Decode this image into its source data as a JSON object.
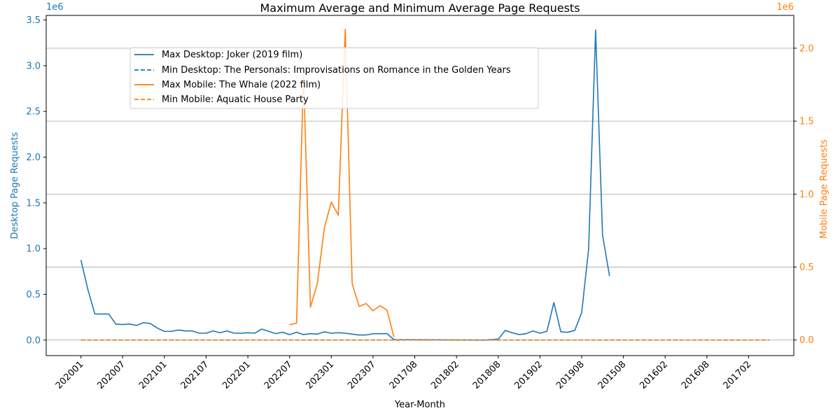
{
  "chart_data": {
    "type": "line",
    "title": "Maximum Average and Minimum Average Page Requests",
    "xlabel": "Year-Month",
    "ylabel_left": "Desktop Page Requests",
    "ylabel_right": "Mobile Page Requests",
    "left_offset_label": "1e6",
    "right_offset_label": "1e6",
    "left_ylim": [
      -0.17,
      3.55
    ],
    "right_ylim": [
      -0.107,
      2.225
    ],
    "left_yticks": [
      "0.0",
      "0.5",
      "1.0",
      "1.5",
      "2.0",
      "2.5",
      "3.0",
      "3.5"
    ],
    "left_ytick_values": [
      0,
      0.5,
      1.0,
      1.5,
      2.0,
      2.5,
      3.0,
      3.5
    ],
    "right_yticks": [
      "0.0",
      "0.5",
      "1.0",
      "1.5",
      "2.0"
    ],
    "right_ytick_values": [
      0,
      0.5,
      1.0,
      1.5,
      2.0
    ],
    "x_count": 100,
    "xlim": [
      -5,
      102.5
    ],
    "x_tick_labels": [
      "202001",
      "202007",
      "202101",
      "202107",
      "202201",
      "202207",
      "202301",
      "202307",
      "201708",
      "201802",
      "201808",
      "201902",
      "201908",
      "201508",
      "201602",
      "201608",
      "201702"
    ],
    "x_tick_index": [
      0,
      6,
      12,
      18,
      24,
      30,
      36,
      42,
      48,
      54,
      60,
      66,
      72,
      78,
      84,
      90,
      96
    ],
    "colors": {
      "desktop": "#1f77b4",
      "mobile": "#ff7f0e",
      "grid": "#b0b0b0"
    },
    "series": [
      {
        "name": "Max Desktop: Joker (2019 film)",
        "axis": "left",
        "style": "solid",
        "color": "#1f77b4",
        "x": [
          0,
          1,
          2,
          3,
          4,
          5,
          6,
          7,
          8,
          9,
          10,
          11,
          12,
          13,
          14,
          15,
          16,
          17,
          18,
          19,
          20,
          21,
          22,
          23,
          24,
          25,
          26,
          27,
          28,
          29,
          30,
          31,
          32,
          33,
          34,
          35,
          36,
          37,
          38,
          39,
          40,
          41,
          42,
          43,
          44,
          45,
          58,
          59,
          60,
          61,
          62,
          63,
          64,
          65,
          66,
          67,
          68,
          69,
          70,
          71,
          72,
          73,
          74,
          75,
          76
        ],
        "values": [
          0.875,
          0.55,
          0.285,
          0.285,
          0.285,
          0.175,
          0.17,
          0.175,
          0.16,
          0.19,
          0.18,
          0.13,
          0.095,
          0.095,
          0.11,
          0.1,
          0.1,
          0.075,
          0.075,
          0.1,
          0.08,
          0.1,
          0.075,
          0.075,
          0.08,
          0.075,
          0.12,
          0.095,
          0.07,
          0.085,
          0.06,
          0.085,
          0.06,
          0.07,
          0.065,
          0.09,
          0.075,
          0.08,
          0.075,
          0.065,
          0.055,
          0.055,
          0.07,
          0.07,
          0.07,
          0.005,
          0.0,
          0.005,
          0.01,
          0.105,
          0.08,
          0.06,
          0.07,
          0.1,
          0.075,
          0.095,
          0.41,
          0.09,
          0.085,
          0.105,
          0.3,
          1.0,
          3.39,
          1.15,
          0.7
        ]
      },
      {
        "name": "Min Desktop: The Personals: Improvisations on Romance in the Golden Years",
        "axis": "left",
        "style": "dashed",
        "color": "#1f77b4",
        "x_start": 0,
        "x_end": 99,
        "constant": 0
      },
      {
        "name": "Max Mobile: The Whale (2022 film)",
        "axis": "right",
        "style": "solid",
        "color": "#ff7f0e",
        "x": [
          30,
          31,
          32,
          33,
          34,
          35,
          36,
          37,
          38,
          39,
          40,
          41,
          42,
          43,
          44,
          45
        ],
        "values": [
          0.105,
          0.115,
          1.82,
          0.225,
          0.39,
          0.77,
          0.945,
          0.855,
          2.13,
          0.385,
          0.23,
          0.25,
          0.2,
          0.235,
          0.205,
          0.02
        ]
      },
      {
        "name": "Min Mobile: Aquatic House Party",
        "axis": "right",
        "style": "dashed",
        "color": "#ff7f0e",
        "x_start": 0,
        "x_end": 99,
        "constant": 0
      }
    ],
    "legend": [
      "Max Desktop: Joker (2019 film)",
      "Min Desktop: The Personals: Improvisations on Romance in the Golden Years",
      "Max Mobile: The Whale (2022 film)",
      "Min Mobile: Aquatic House Party"
    ],
    "legend_position": "upper-left",
    "grid": "right-axis horizontal"
  }
}
